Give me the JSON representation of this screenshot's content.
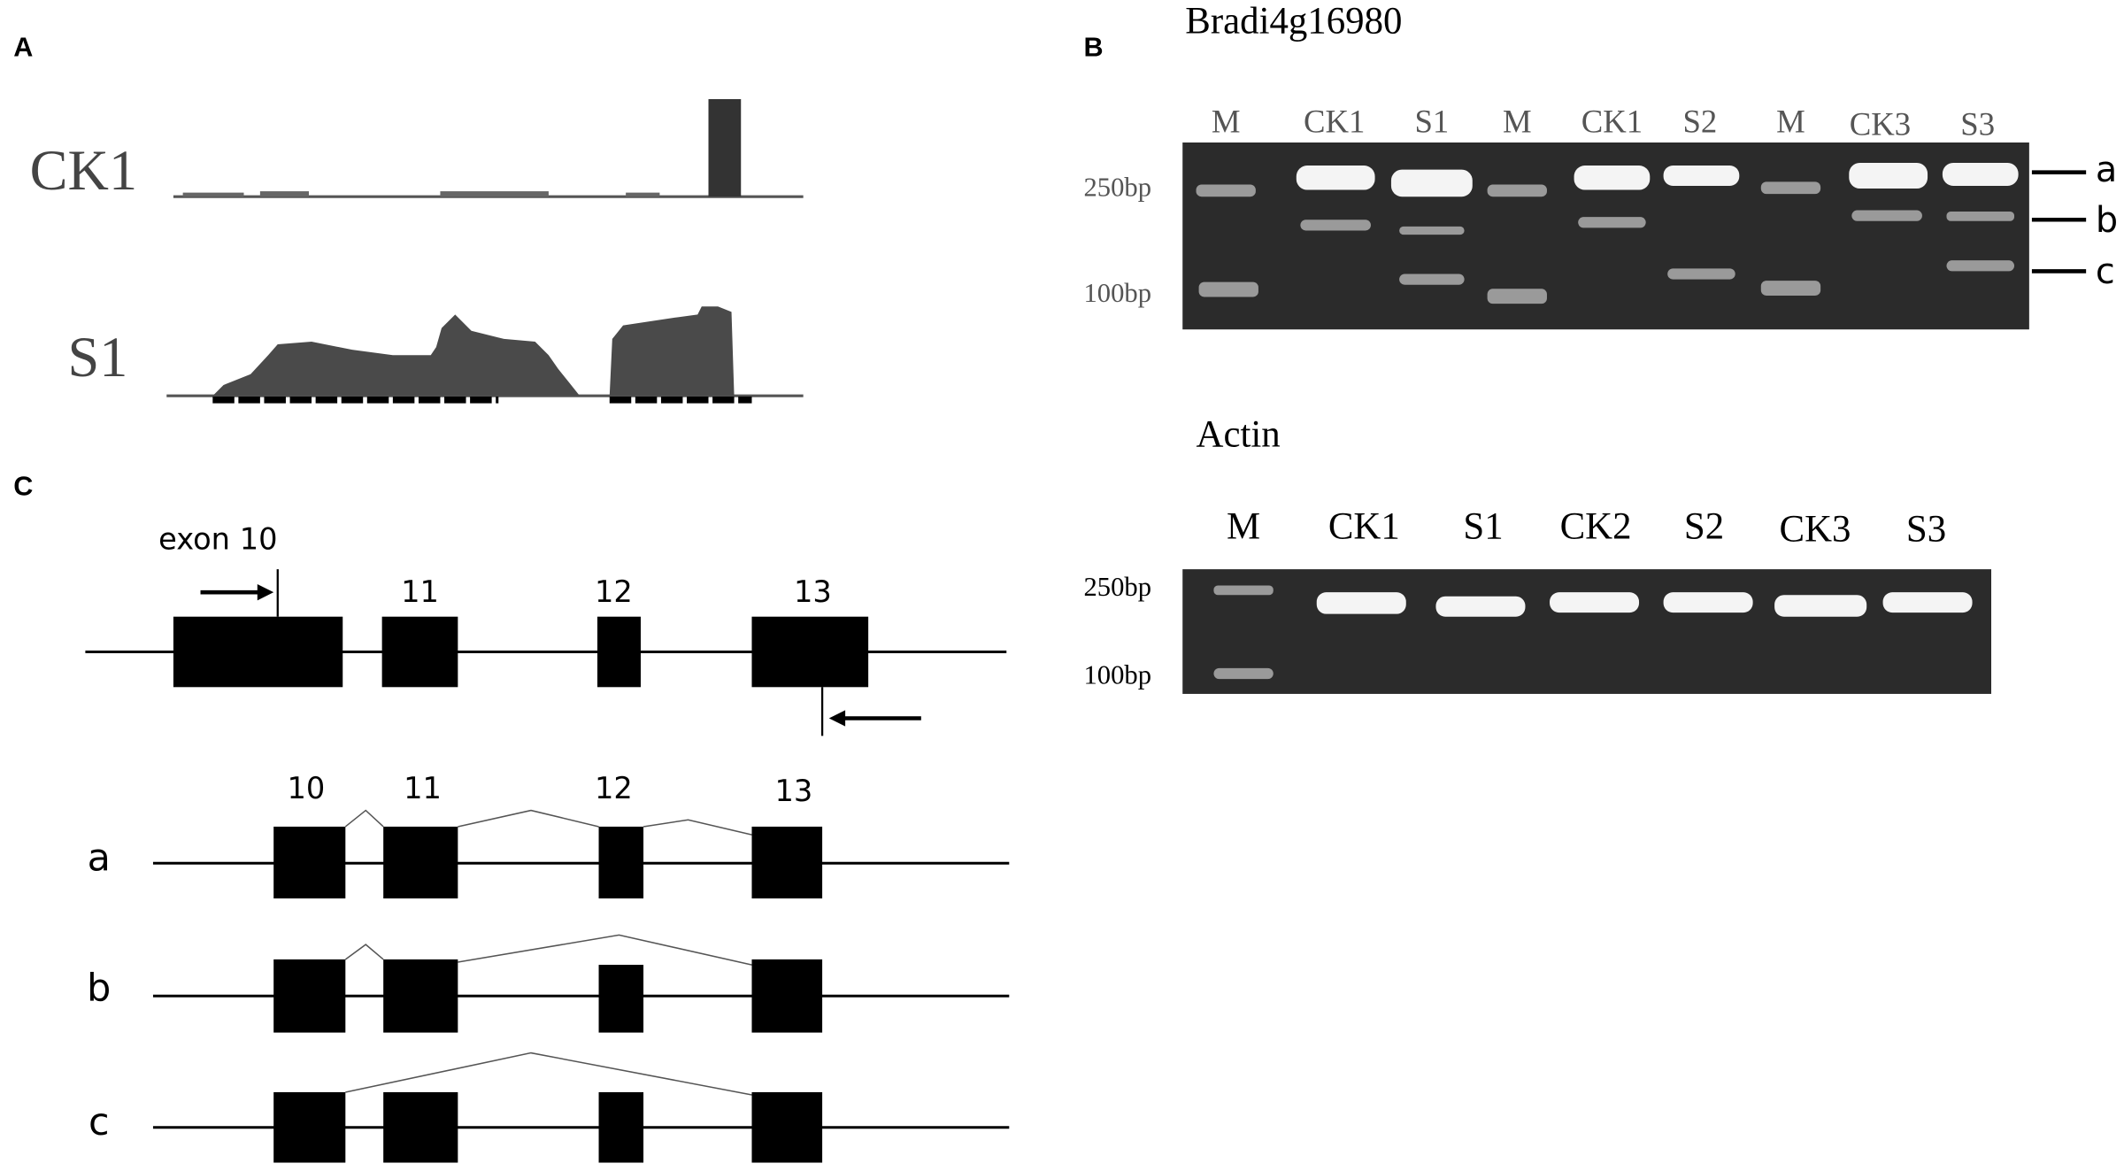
{
  "panels": {
    "a": "A",
    "b": "B",
    "c": "C"
  },
  "coverage": {
    "tracks": [
      "CK1",
      "S1"
    ]
  },
  "gel1": {
    "title": "Bradi4g16980",
    "lanes": [
      "M",
      "CK1",
      "S1",
      "M",
      "CK1",
      "S2",
      "M",
      "CK3",
      "S3"
    ],
    "markers": [
      "250bp",
      "100bp"
    ],
    "bands": [
      "a",
      "b",
      "c"
    ]
  },
  "gel2": {
    "title": "Actin",
    "lanes": [
      "M",
      "CK1",
      "S1",
      "CK2",
      "S2",
      "CK3",
      "S3"
    ],
    "markers": [
      "250bp",
      "100bp"
    ]
  },
  "gene": {
    "exon_label": "exon 10",
    "exons": [
      "11",
      "12",
      "13"
    ],
    "isoform_exons": [
      "10",
      "11",
      "12",
      "13"
    ],
    "isoforms": [
      "a",
      "b",
      "c"
    ]
  }
}
